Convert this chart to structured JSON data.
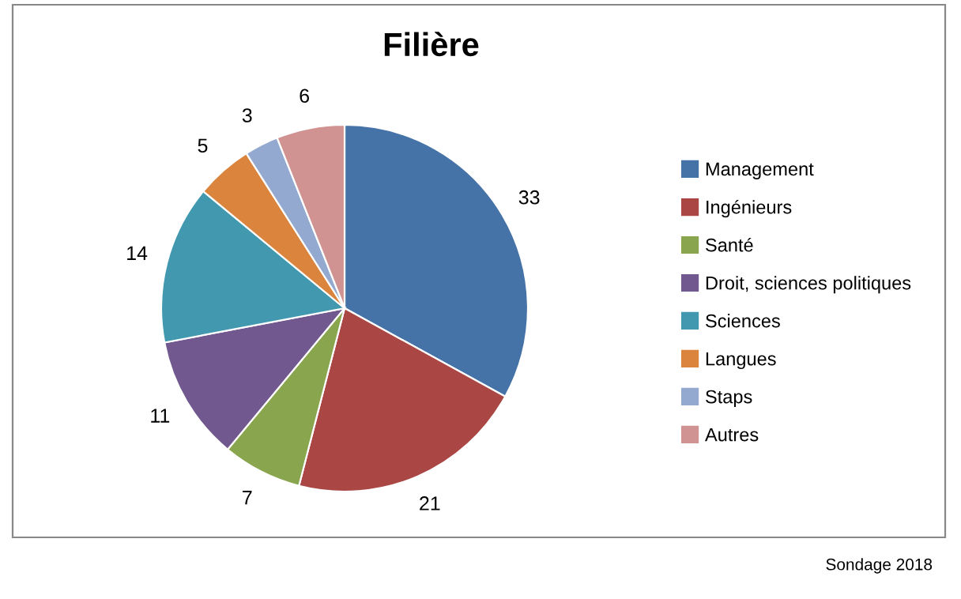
{
  "chart_data": {
    "type": "pie",
    "title": "Filière",
    "categories": [
      "Management",
      "Ingénieurs",
      "Santé",
      "Droit, sciences politiques",
      "Sciences",
      "Langues",
      "Staps",
      "Autres"
    ],
    "values": [
      33,
      21,
      7,
      11,
      14,
      5,
      3,
      6
    ],
    "colors": [
      "#4572a7",
      "#aa4643",
      "#89a54e",
      "#71588f",
      "#4198af",
      "#db843d",
      "#93a9cf",
      "#d19392"
    ],
    "data_labels": true,
    "legend": "right",
    "annotations": [
      "Sondage 2018"
    ]
  }
}
